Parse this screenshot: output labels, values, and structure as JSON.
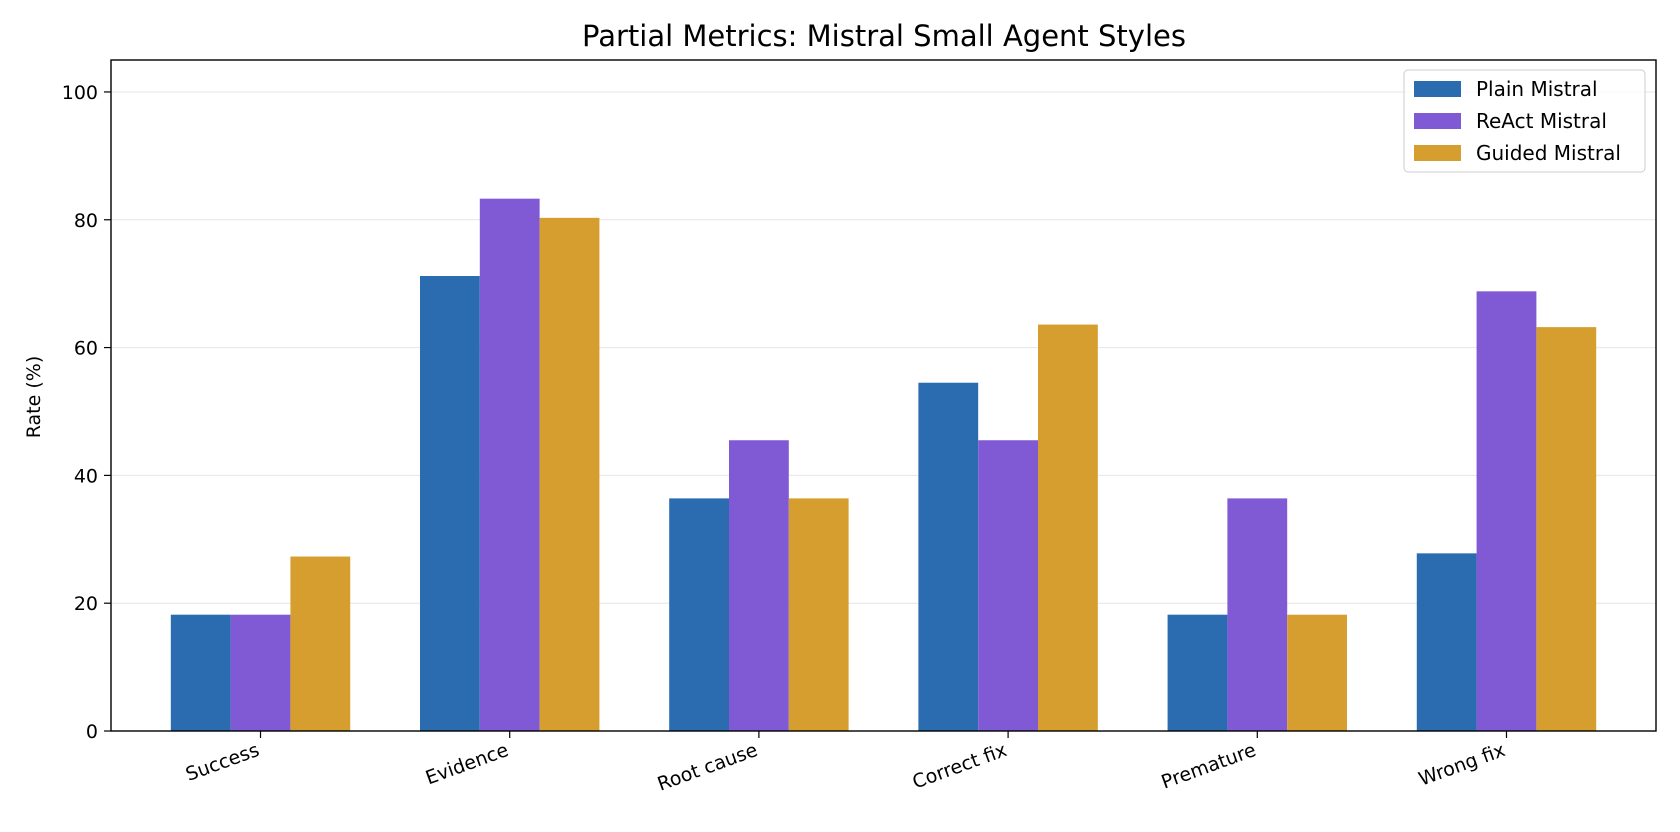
{
  "chart_data": {
    "type": "bar",
    "title": "Partial Metrics: Mistral Small Agent Styles",
    "xlabel": "",
    "ylabel": "Rate (%)",
    "ylim": [
      0,
      105
    ],
    "yticks": [
      0,
      20,
      40,
      60,
      80,
      100
    ],
    "grid": "horizontal",
    "legend_position": "top-right",
    "categories": [
      "Success",
      "Evidence",
      "Root cause",
      "Correct fix",
      "Premature",
      "Wrong fix"
    ],
    "series": [
      {
        "name": "Plain Mistral",
        "color": "#2b6cb0",
        "values": [
          18.2,
          71.2,
          36.4,
          54.5,
          18.2,
          27.8
        ]
      },
      {
        "name": "ReAct Mistral",
        "color": "#805ad5",
        "values": [
          18.2,
          83.3,
          45.5,
          45.5,
          36.4,
          68.8
        ]
      },
      {
        "name": "Guided Mistral",
        "color": "#d69e2e",
        "values": [
          27.3,
          80.3,
          36.4,
          63.6,
          18.2,
          63.2
        ]
      }
    ]
  }
}
